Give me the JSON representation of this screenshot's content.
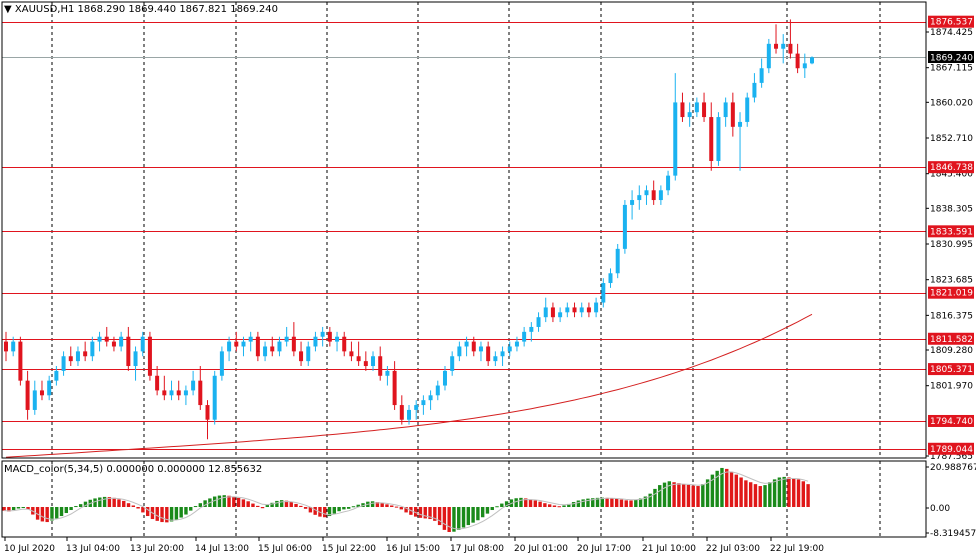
{
  "header": {
    "arrow": "▼",
    "symbol": "XAUUSD,H1",
    "ohlc": "1868.290 1869.440 1867.821 1869.240"
  },
  "macd": {
    "label": "MACD_color(5,34,5) 0.000000 0.000000 12.855632",
    "scale_labels": [
      "20.988767",
      "0.00",
      "-8.319457"
    ],
    "bars": [
      -1.2,
      -1.5,
      -1.0,
      -0.5,
      -0.2,
      -0.8,
      -2.5,
      -4.2,
      -4.8,
      -5.0,
      -4.5,
      -3.8,
      -3.0,
      -2.0,
      -1.0,
      0.5,
      1.5,
      2.8,
      3.8,
      4.5,
      5.0,
      5.3,
      5.2,
      4.8,
      4.0,
      3.2,
      2.0,
      0.8,
      -0.5,
      -1.8,
      -3.0,
      -4.0,
      -4.6,
      -5.0,
      -5.1,
      -4.8,
      -4.2,
      -3.5,
      -2.5,
      -1.2,
      0.5,
      2.0,
      3.5,
      4.5,
      5.5,
      6.0,
      6.2,
      5.9,
      5.5,
      4.8,
      4.0,
      3.0,
      1.8,
      0.6,
      -0.4,
      1.0,
      2.2,
      3.2,
      3.6,
      3.3,
      2.6,
      1.6,
      0.6,
      -0.6,
      -1.8,
      -2.6,
      -3.2,
      -3.4,
      -3.0,
      -2.2,
      -1.4,
      -0.8,
      -0.6,
      0.4,
      1.2,
      2.0,
      2.8,
      3.0,
      2.6,
      2.0,
      1.4,
      0.8,
      0.2,
      -0.8,
      -1.8,
      -2.6,
      -3.2,
      -3.6,
      -3.8,
      -4.0,
      -4.6,
      -6.0,
      -7.6,
      -8.3,
      -8.2,
      -7.6,
      -6.8,
      -6.0,
      -5.2,
      -4.4,
      -3.4,
      -2.2,
      -1.0,
      0.4,
      1.8,
      3.0,
      4.0,
      4.6,
      4.8,
      4.5,
      4.0,
      3.4,
      2.8,
      2.0,
      1.4,
      0.8,
      0.4,
      0.8,
      1.6,
      2.6,
      3.4,
      4.0,
      4.4,
      4.6,
      4.8,
      4.9,
      4.8,
      4.6,
      4.3,
      3.9,
      3.5,
      3.4,
      3.8,
      4.5,
      5.5,
      7.0,
      9.5,
      11.5,
      12.8,
      13.5,
      13.0,
      12.5,
      12.0,
      11.6,
      11.2,
      11.0,
      12.0,
      14.5,
      17.0,
      19.0,
      20.5,
      20.0,
      18.5,
      17.0,
      15.5,
      14.0,
      13.0,
      12.0,
      11.0,
      11.5,
      13.0,
      14.5,
      15.5,
      15.8,
      15.5,
      15.0,
      14.5,
      13.5,
      12.0
    ]
  },
  "price_scale": {
    "labels": [
      "1874.425",
      "1867.115",
      "1860.020",
      "1852.710",
      "1845.400",
      "1838.305",
      "1830.995",
      "1823.685",
      "1816.375",
      "1809.280",
      "1801.970",
      "1787.565"
    ],
    "levels": [
      1874.425,
      1867.115,
      1860.02,
      1852.71,
      1845.4,
      1838.305,
      1830.995,
      1823.685,
      1816.375,
      1809.28,
      1801.97,
      1787.565
    ]
  },
  "current_price": {
    "value": 1869.24,
    "label": "1869.240"
  },
  "hlines": [
    {
      "value": 1876.537,
      "label": "1876.537"
    },
    {
      "value": 1846.738,
      "label": "1846.738"
    },
    {
      "value": 1833.591,
      "label": "1833.591"
    },
    {
      "value": 1821.019,
      "label": "1821.019"
    },
    {
      "value": 1811.582,
      "label": "1811.582"
    },
    {
      "value": 1805.371,
      "label": "1805.371"
    },
    {
      "value": 1794.74,
      "label": "1794.740"
    },
    {
      "value": 1789.044,
      "label": "1789.044"
    }
  ],
  "time_axis": {
    "labels": [
      "10 Jul 2020",
      "13 Jul 04:00",
      "13 Jul 20:00",
      "14 Jul 13:00",
      "15 Jul 06:00",
      "15 Jul 22:00",
      "16 Jul 15:00",
      "17 Jul 08:00",
      "20 Jul 01:00",
      "20 Jul 17:00",
      "21 Jul 10:00",
      "22 Jul 03:00",
      "22 Jul 19:00"
    ]
  },
  "colors": {
    "bull": "#1ab2f0",
    "bear": "#e0141e",
    "hline": "#e0141e",
    "ma": "#d42020",
    "macd_up": "#1a8a1a",
    "macd_down": "#e01818",
    "macd_signal": "#c0c0c0",
    "grid": "#000000",
    "current": "#9aa6a6"
  },
  "chart_data": {
    "type": "candlestick",
    "title": "XAUUSD,H1",
    "ohlc_series": [
      [
        1811,
        1813,
        1807,
        1809
      ],
      [
        1809,
        1812,
        1808,
        1811
      ],
      [
        1811,
        1812,
        1802,
        1803
      ],
      [
        1803,
        1805,
        1795,
        1797
      ],
      [
        1797,
        1803,
        1796,
        1801
      ],
      [
        1801,
        1803,
        1799,
        1800
      ],
      [
        1800,
        1804,
        1799,
        1803
      ],
      [
        1803,
        1806,
        1802,
        1805
      ],
      [
        1805,
        1809,
        1804,
        1808
      ],
      [
        1808,
        1810,
        1806,
        1807
      ],
      [
        1807,
        1810,
        1806,
        1809
      ],
      [
        1809,
        1811,
        1807,
        1808
      ],
      [
        1808,
        1812,
        1807,
        1811
      ],
      [
        1811,
        1813,
        1809,
        1812
      ],
      [
        1812,
        1814,
        1810,
        1811
      ],
      [
        1811,
        1812,
        1809,
        1810
      ],
      [
        1810,
        1813,
        1809,
        1812
      ],
      [
        1812,
        1814,
        1805,
        1806
      ],
      [
        1806,
        1810,
        1803,
        1809
      ],
      [
        1809,
        1813,
        1808,
        1812
      ],
      [
        1812,
        1813,
        1803,
        1804
      ],
      [
        1804,
        1806,
        1800,
        1801
      ],
      [
        1801,
        1804,
        1799,
        1800
      ],
      [
        1800,
        1803,
        1799,
        1801
      ],
      [
        1801,
        1803,
        1799,
        1800
      ],
      [
        1800,
        1802,
        1798,
        1801
      ],
      [
        1801,
        1805,
        1800,
        1803
      ],
      [
        1803,
        1806,
        1797,
        1798
      ],
      [
        1798,
        1799,
        1791,
        1795
      ],
      [
        1795,
        1805,
        1794,
        1804
      ],
      [
        1804,
        1810,
        1803,
        1809
      ],
      [
        1809,
        1812,
        1807,
        1811
      ],
      [
        1811,
        1813,
        1809,
        1810
      ],
      [
        1810,
        1812,
        1808,
        1811
      ],
      [
        1811,
        1813,
        1809,
        1812
      ],
      [
        1812,
        1813,
        1807,
        1808
      ],
      [
        1808,
        1811,
        1807,
        1810
      ],
      [
        1810,
        1812,
        1808,
        1809
      ],
      [
        1809,
        1812,
        1808,
        1811
      ],
      [
        1811,
        1814,
        1810,
        1812
      ],
      [
        1812,
        1815,
        1808,
        1809
      ],
      [
        1809,
        1811,
        1806,
        1807
      ],
      [
        1807,
        1811,
        1806,
        1810
      ],
      [
        1810,
        1813,
        1809,
        1812
      ],
      [
        1812,
        1814,
        1810,
        1813
      ],
      [
        1813,
        1814,
        1810,
        1811
      ],
      [
        1811,
        1813,
        1809,
        1812
      ],
      [
        1812,
        1813,
        1808,
        1809
      ],
      [
        1809,
        1811,
        1807,
        1808
      ],
      [
        1808,
        1811,
        1806,
        1807
      ],
      [
        1807,
        1809,
        1805,
        1806
      ],
      [
        1806,
        1809,
        1805,
        1808
      ],
      [
        1808,
        1810,
        1803,
        1804
      ],
      [
        1804,
        1806,
        1802,
        1805
      ],
      [
        1805,
        1807,
        1797,
        1798
      ],
      [
        1798,
        1800,
        1794,
        1795
      ],
      [
        1795,
        1798,
        1794,
        1797
      ],
      [
        1797,
        1799,
        1795,
        1798
      ],
      [
        1798,
        1800,
        1796,
        1799
      ],
      [
        1799,
        1801,
        1797,
        1800
      ],
      [
        1800,
        1803,
        1799,
        1802
      ],
      [
        1802,
        1806,
        1801,
        1805
      ],
      [
        1805,
        1809,
        1804,
        1808
      ],
      [
        1808,
        1811,
        1807,
        1810
      ],
      [
        1810,
        1812,
        1808,
        1811
      ],
      [
        1811,
        1812,
        1808,
        1809
      ],
      [
        1809,
        1811,
        1807,
        1810
      ],
      [
        1810,
        1811,
        1806,
        1807
      ],
      [
        1807,
        1809,
        1806,
        1808
      ],
      [
        1808,
        1810,
        1806,
        1809
      ],
      [
        1809,
        1811,
        1808,
        1810
      ],
      [
        1810,
        1812,
        1809,
        1811
      ],
      [
        1811,
        1814,
        1810,
        1813
      ],
      [
        1813,
        1815,
        1811,
        1814
      ],
      [
        1814,
        1817,
        1813,
        1816
      ],
      [
        1816,
        1820,
        1815,
        1818
      ],
      [
        1818,
        1819,
        1815,
        1816
      ],
      [
        1816,
        1818,
        1815,
        1817
      ],
      [
        1817,
        1819,
        1816,
        1818
      ],
      [
        1818,
        1819,
        1816,
        1817
      ],
      [
        1817,
        1819,
        1816,
        1818
      ],
      [
        1818,
        1819,
        1816,
        1817
      ],
      [
        1817,
        1820,
        1816,
        1819
      ],
      [
        1819,
        1824,
        1818,
        1823
      ],
      [
        1823,
        1826,
        1822,
        1825
      ],
      [
        1825,
        1831,
        1824,
        1830
      ],
      [
        1830,
        1840,
        1829,
        1839
      ],
      [
        1839,
        1842,
        1836,
        1840
      ],
      [
        1840,
        1843,
        1838,
        1841
      ],
      [
        1841,
        1843,
        1839,
        1842
      ],
      [
        1842,
        1844,
        1839,
        1840
      ],
      [
        1840,
        1843,
        1839,
        1842
      ],
      [
        1842,
        1846,
        1841,
        1845
      ],
      [
        1845,
        1866,
        1844,
        1860
      ],
      [
        1860,
        1862,
        1856,
        1857
      ],
      [
        1857,
        1860,
        1855,
        1858
      ],
      [
        1858,
        1861,
        1857,
        1860
      ],
      [
        1860,
        1862,
        1856,
        1857
      ],
      [
        1857,
        1860,
        1846,
        1848
      ],
      [
        1848,
        1858,
        1847,
        1857
      ],
      [
        1857,
        1861,
        1855,
        1860
      ],
      [
        1860,
        1862,
        1853,
        1855
      ],
      [
        1855,
        1858,
        1846,
        1856
      ],
      [
        1856,
        1862,
        1855,
        1861
      ],
      [
        1861,
        1866,
        1860,
        1864
      ],
      [
        1864,
        1869,
        1863,
        1867
      ],
      [
        1867,
        1873,
        1866,
        1872
      ],
      [
        1872,
        1876,
        1870,
        1871
      ],
      [
        1871,
        1874,
        1868,
        1872
      ],
      [
        1872,
        1877,
        1869,
        1870
      ],
      [
        1870,
        1872,
        1866,
        1867
      ],
      [
        1867,
        1870,
        1865,
        1868
      ],
      [
        1868,
        1869.44,
        1867.82,
        1869.24
      ]
    ]
  }
}
